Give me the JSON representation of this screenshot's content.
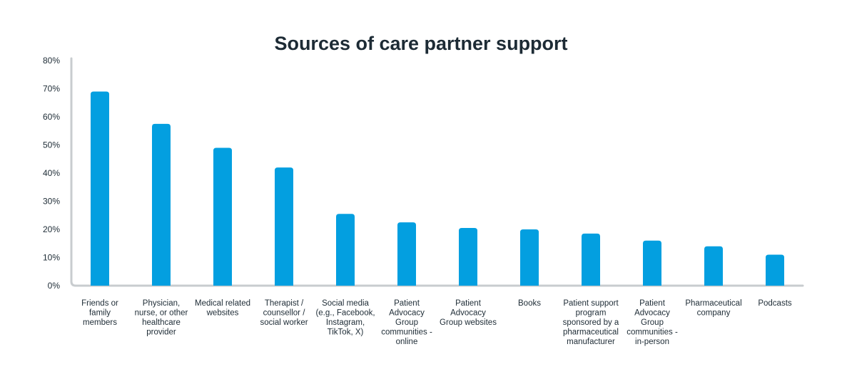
{
  "chart_data": {
    "type": "bar",
    "title": "Sources of care partner support",
    "xlabel": "",
    "ylabel": "",
    "ylim": [
      0,
      80
    ],
    "yticks": [
      "0%",
      "10%",
      "20%",
      "30%",
      "40%",
      "50%",
      "60%",
      "70%",
      "80%"
    ],
    "grid": false,
    "legend": "none",
    "categories": [
      "Friends or family members",
      "Physician, nurse, or other healthcare provider",
      "Medical related websites",
      "Therapist / counsellor / social worker",
      "Social media (e.g., Facebook, Instagram, TikTok, X)",
      "Patient Advocacy Group communities - online",
      "Patient Advocacy Group websites",
      "Books",
      "Patient support program sponsored by a pharmaceutical manufacturer",
      "Patient Advocacy Group communities - in-person",
      "Pharmaceutical company",
      "Podcasts"
    ],
    "category_lines": [
      [
        "Friends or",
        "family",
        "members"
      ],
      [
        "Physician,",
        "nurse, or other",
        "healthcare",
        "provider"
      ],
      [
        "Medical related",
        "websites"
      ],
      [
        "Therapist /",
        "counsellor /",
        "social worker"
      ],
      [
        "Social media",
        "(e.g., Facebook,",
        "Instagram,",
        "TikTok, X)"
      ],
      [
        "Patient",
        "Advocacy",
        "Group",
        "communities -",
        "online"
      ],
      [
        "Patient",
        "Advocacy",
        "Group websites"
      ],
      [
        "Books"
      ],
      [
        "Patient support",
        "program",
        "sponsored by a",
        "pharmaceutical",
        "manufacturer"
      ],
      [
        "Patient",
        "Advocacy",
        "Group",
        "communities -",
        "in-person"
      ],
      [
        "Pharmaceutical",
        "company"
      ],
      [
        "Podcasts"
      ]
    ],
    "values": [
      69,
      57.5,
      49,
      42,
      25.5,
      22.5,
      20.5,
      20,
      18.5,
      16,
      14,
      11
    ],
    "colors": {
      "bar": "#039fe0",
      "axis": "#c8cccf",
      "text": "#1d2b35"
    }
  }
}
